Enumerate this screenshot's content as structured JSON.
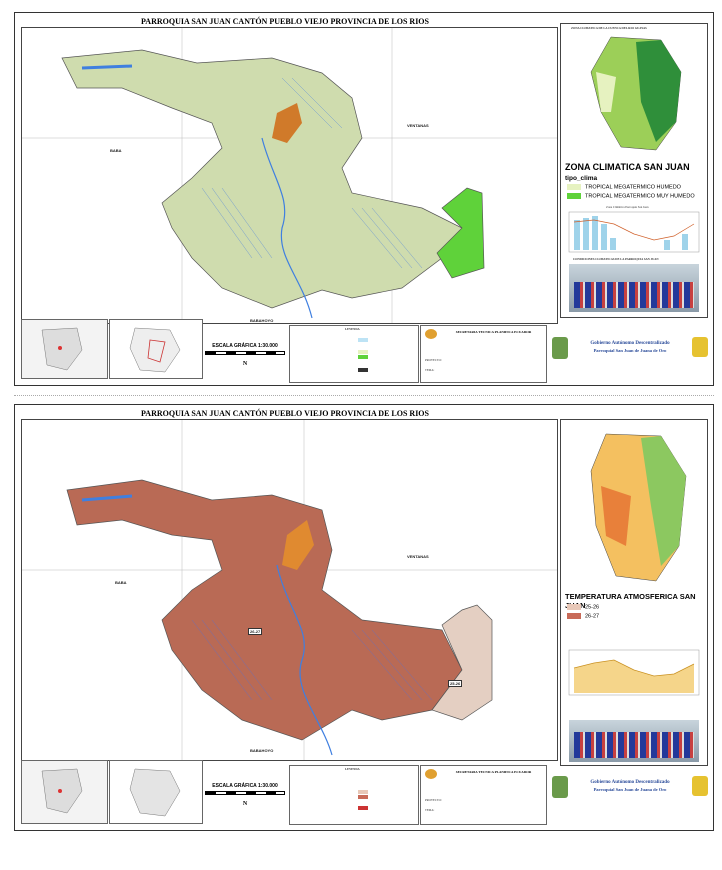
{
  "map1": {
    "title": "PARROQUIA SAN JUAN CANTÓN PUEBLO VIEJO PROVINCIA DE LOS RIOS",
    "neighbors": [
      "BABA",
      "VENTANAS",
      "BABAHOYO"
    ],
    "inset_title": "ZONA CLIMATICA DE LA CUENCA DEL RIO GUAYAS",
    "legend_title": "ZONA CLIMATICA SAN JUAN",
    "legend_field": "tipo_clima",
    "legend_items": [
      {
        "label": "TROPICAL MEGATERMICO HUMEDO",
        "color": "#e6f2c0"
      },
      {
        "label": "TROPICAL MEGATERMICO MUY HUMEDO",
        "color": "#5fd23a"
      }
    ],
    "chart_title": "Zona Climática Parroquia San Juan",
    "photo_title": "CONDICIONES CLIMATICAS DE LA PARROQUIA SAN JUAN",
    "scale": "ESCALA GRÁFICA  1:30.000"
  },
  "map2": {
    "title": "PARROQUIA SAN JUAN CANTÓN PUEBLO VIEJO PROVINCIA DE LOS RIOS",
    "neighbors": [
      "BABA",
      "VENTANAS",
      "BABAHOYO"
    ],
    "zone_labels": [
      "26-27",
      "25-26"
    ],
    "legend_title": "TEMPERATURA ATMOSFERICA SAN JUAN",
    "legend_items": [
      {
        "label": "25-26",
        "color": "#e8c8b8"
      },
      {
        "label": "26-27",
        "color": "#c86a58"
      }
    ],
    "scale": "ESCALA GRÁFICA  1:30.000"
  },
  "common": {
    "legend_heading": "LEYENDA",
    "north": "N",
    "agency": "SECRETARIA TECNICA PLANIFICA ECUADOR",
    "project_label": "PROYECTO:",
    "theme_label": "TEMA:",
    "gad_line1": "Gobierno Autónomo Descentralizado",
    "gad_line2": "Parroquial San Juan de Juana de Oro"
  },
  "colors": {
    "map1_land": "#cfdcae",
    "map1_humid": "#5fd23a",
    "map2_land": "#b96a55",
    "map2_cool": "#e4cfc2",
    "water": "#3f7fe0"
  }
}
